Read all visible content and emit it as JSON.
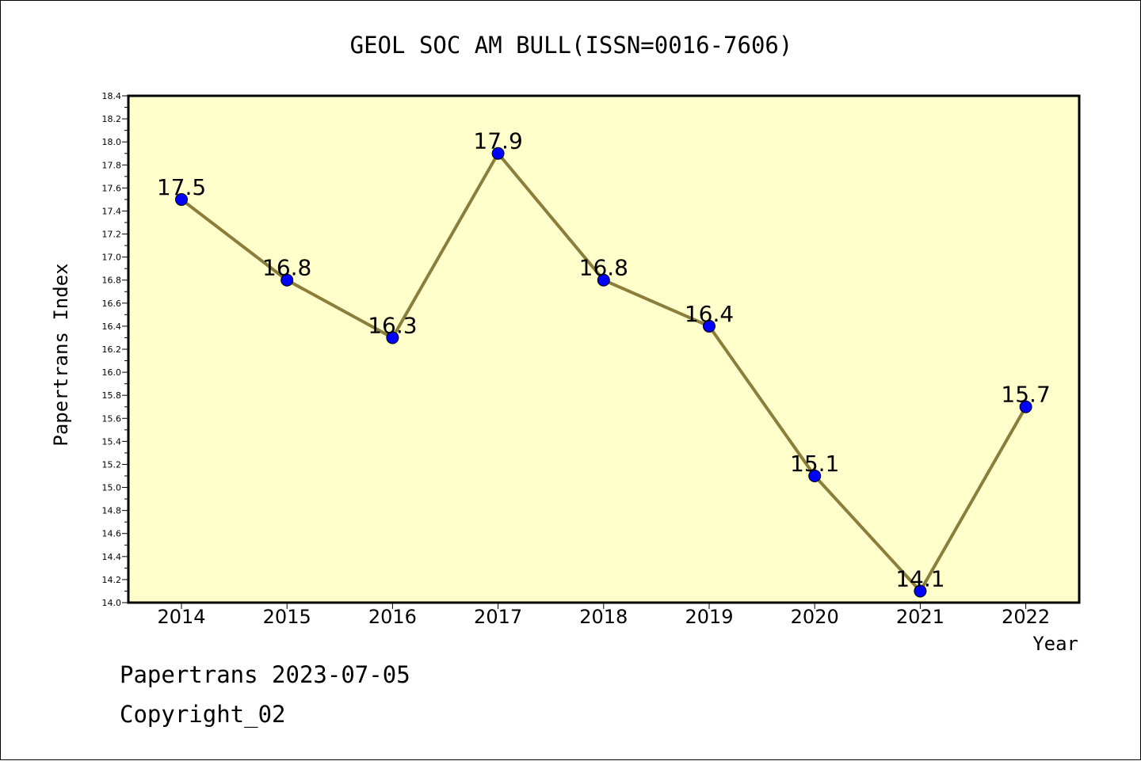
{
  "chart_data": {
    "type": "line",
    "title": "GEOL SOC AM BULL(ISSN=0016-7606)",
    "xlabel": "Year",
    "ylabel": "Papertrans Index",
    "categories": [
      "2014",
      "2015",
      "2016",
      "2017",
      "2018",
      "2019",
      "2020",
      "2021",
      "2022"
    ],
    "series": [
      {
        "values": [
          17.5,
          16.8,
          16.3,
          17.9,
          16.8,
          16.4,
          15.1,
          14.1,
          15.7
        ]
      }
    ],
    "data_labels": [
      "17.5",
      "16.8",
      "16.3",
      "17.9",
      "16.8",
      "16.4",
      "15.1",
      "14.1",
      "15.7"
    ],
    "ylim": [
      14.0,
      18.4
    ],
    "yticks": [
      "14.0",
      "14.2",
      "14.4",
      "14.6",
      "14.8",
      "15.0",
      "15.2",
      "15.4",
      "15.6",
      "15.8",
      "16.0",
      "16.2",
      "16.4",
      "16.6",
      "16.8",
      "17.0",
      "17.2",
      "17.4",
      "17.6",
      "17.8",
      "18.0",
      "18.2",
      "18.4"
    ],
    "grid": false,
    "colors": {
      "plot_background": "#ffffcc",
      "line": "#8b7d3a",
      "marker": "#0000ff"
    }
  },
  "footer": {
    "date": "Papertrans 2023-07-05",
    "copyright": "Copyright_02"
  }
}
